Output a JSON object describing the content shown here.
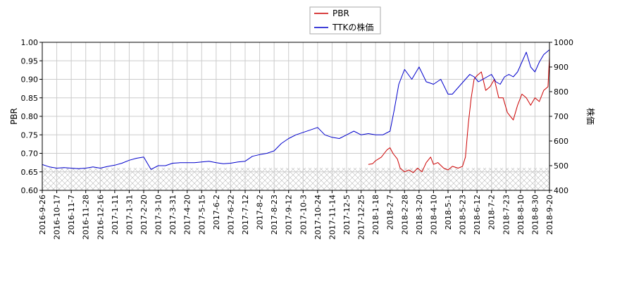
{
  "chart_data": {
    "type": "line",
    "title": "",
    "legend": {
      "placement": "top-center",
      "entries": [
        "PBR",
        "TTKの株価"
      ]
    },
    "left_axis": {
      "label": "PBR",
      "ylim": [
        0.6,
        1.0
      ],
      "ticks": [
        "0.60",
        "0.65",
        "0.70",
        "0.75",
        "0.80",
        "0.85",
        "0.90",
        "0.95",
        "1.00"
      ]
    },
    "right_axis": {
      "label": "株価",
      "ylim": [
        400,
        1000
      ],
      "ticks": [
        "400",
        "500",
        "600",
        "700",
        "800",
        "900",
        "1000"
      ]
    },
    "x_ticks": [
      "2016-9-26",
      "2016-10-17",
      "2016-11-7",
      "2016-11-28",
      "2016-12-16",
      "2017-1-11",
      "2017-1-31",
      "2017-2-20",
      "2017-3-10",
      "2017-3-31",
      "2017-4-20",
      "2017-5-15",
      "2017-6-2",
      "2017-6-22",
      "2017-7-12",
      "2017-8-2",
      "2017-8-23",
      "2017-9-12",
      "2017-10-3",
      "2017-10-24",
      "2017-11-14",
      "2017-12-5",
      "2017-12-25",
      "2018-1-18",
      "2018-2-7",
      "2018-2-28",
      "2018-3-20",
      "2018-4-10",
      "2018-5-1",
      "2018-5-23",
      "2018-6-12",
      "2018-7-2",
      "2018-7-23",
      "2018-8-10",
      "2018-8-30",
      "2018-9-20"
    ],
    "grid": true,
    "shaded_band": {
      "axis": "right",
      "from": 400,
      "to": 490
    },
    "series": [
      {
        "name": "PBR",
        "axis": "left",
        "color": "#cc0000",
        "x": [
          22.5,
          22.8,
          23.0,
          23.2,
          23.4,
          23.6,
          23.8,
          24.0,
          24.2,
          24.5,
          24.7,
          25.0,
          25.3,
          25.6,
          25.9,
          26.2,
          26.5,
          26.8,
          27.0,
          27.3,
          27.7,
          28.0,
          28.3,
          28.7,
          29.0,
          29.2,
          29.4,
          29.6,
          29.8,
          30.0,
          30.3,
          30.6,
          30.9,
          31.2,
          31.5,
          31.8,
          32.1,
          32.5,
          32.8,
          33.1,
          33.4,
          33.7,
          34.0,
          34.3,
          34.6,
          34.9,
          35.0
        ],
        "y": [
          0.67,
          0.672,
          0.68,
          0.685,
          0.69,
          0.7,
          0.71,
          0.715,
          0.7,
          0.685,
          0.66,
          0.65,
          0.655,
          0.648,
          0.66,
          0.65,
          0.675,
          0.69,
          0.67,
          0.675,
          0.66,
          0.655,
          0.665,
          0.66,
          0.665,
          0.69,
          0.78,
          0.85,
          0.9,
          0.91,
          0.92,
          0.87,
          0.88,
          0.9,
          0.85,
          0.85,
          0.81,
          0.79,
          0.83,
          0.86,
          0.85,
          0.83,
          0.85,
          0.84,
          0.87,
          0.88,
          0.96
        ]
      },
      {
        "name": "TTKの株価",
        "axis": "right",
        "color": "#0000cc",
        "x": [
          0.0,
          0.5,
          1.0,
          1.5,
          2.0,
          2.5,
          3.0,
          3.5,
          4.0,
          4.5,
          5.0,
          5.5,
          6.0,
          6.5,
          7.0,
          7.5,
          8.0,
          8.5,
          9.0,
          9.5,
          10.0,
          10.5,
          11.0,
          11.5,
          12.0,
          12.5,
          13.0,
          13.5,
          14.0,
          14.5,
          15.0,
          15.5,
          16.0,
          16.5,
          17.0,
          17.5,
          18.0,
          18.5,
          19.0,
          19.5,
          20.0,
          20.5,
          21.0,
          21.5,
          22.0,
          22.5,
          23.0,
          23.5,
          24.0,
          24.3,
          24.6,
          25.0,
          25.5,
          26.0,
          26.5,
          27.0,
          27.5,
          28.0,
          28.3,
          28.6,
          28.9,
          29.2,
          29.5,
          29.8,
          30.1,
          30.4,
          30.7,
          31.0,
          31.3,
          31.6,
          31.9,
          32.2,
          32.5,
          32.8,
          33.1,
          33.4,
          33.7,
          34.0,
          34.3,
          34.6,
          34.8,
          35.0
        ],
        "y": [
          505,
          495,
          490,
          492,
          490,
          488,
          490,
          495,
          490,
          497,
          502,
          510,
          522,
          530,
          535,
          485,
          500,
          500,
          510,
          512,
          512,
          512,
          515,
          518,
          512,
          508,
          510,
          515,
          518,
          538,
          545,
          550,
          560,
          590,
          610,
          625,
          635,
          645,
          655,
          625,
          615,
          610,
          625,
          640,
          625,
          630,
          625,
          625,
          640,
          730,
          830,
          890,
          850,
          900,
          840,
          830,
          850,
          790,
          790,
          810,
          830,
          850,
          870,
          860,
          840,
          850,
          860,
          870,
          840,
          830,
          860,
          870,
          860,
          880,
          920,
          960,
          900,
          880,
          920,
          950,
          960,
          970
        ]
      }
    ]
  }
}
